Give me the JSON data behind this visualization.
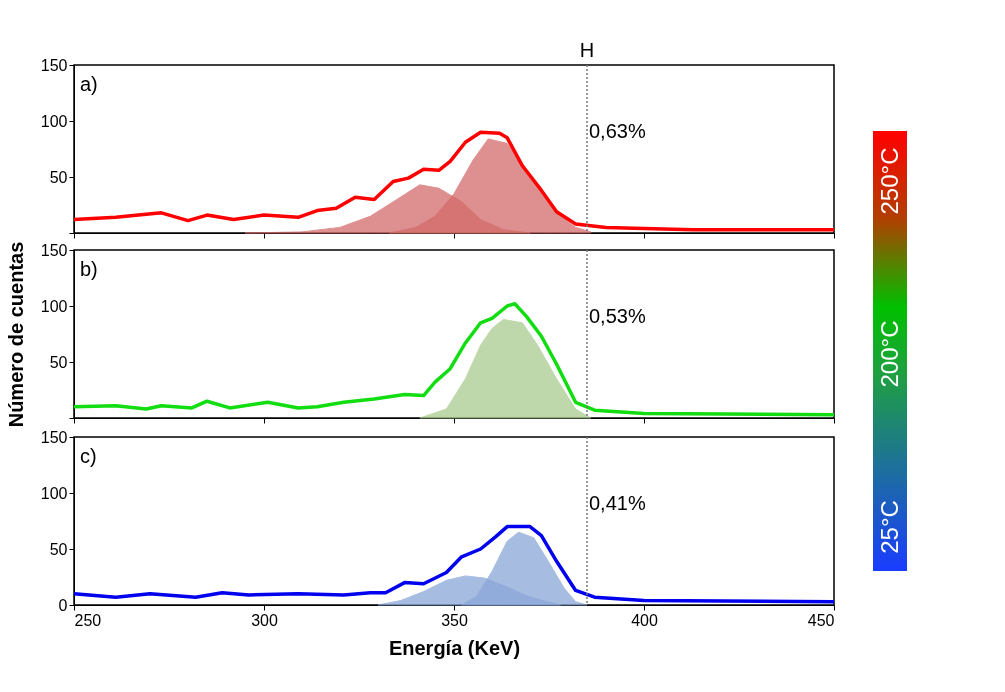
{
  "chart_data": [
    {
      "type": "line",
      "xlim": [
        250,
        450
      ],
      "xticks": [
        250,
        300,
        350,
        400,
        450
      ],
      "ylim": [
        0,
        150
      ],
      "yticks": [
        {
          "value": 0,
          "label": null
        },
        50,
        100,
        150
      ],
      "tick_labels": "y",
      "grid": false,
      "line_style": "solid",
      "annotations": [
        "a)",
        "0,63%"
      ],
      "ref_lines": [
        {
          "axis": "x",
          "value": 385,
          "label": "H",
          "line_style": "dotted",
          "color": "#777777"
        }
      ],
      "series": [
        {
          "type": "area",
          "color": "#d46a6a",
          "x": [
            295,
            310,
            320,
            328,
            335,
            341,
            346,
            352,
            357,
            363,
            370
          ],
          "values": [
            0,
            1,
            5,
            15,
            30,
            43,
            40,
            28,
            12,
            3,
            0
          ]
        },
        {
          "type": "area",
          "color": "#d46a6a",
          "x": [
            333,
            340,
            345,
            350,
            355,
            359,
            364,
            368,
            372,
            377,
            382,
            386
          ],
          "values": [
            0,
            5,
            15,
            35,
            65,
            84,
            80,
            62,
            40,
            18,
            5,
            1
          ]
        },
        {
          "type": "line",
          "color": "#ff0000",
          "x": [
            250,
            261,
            273,
            280,
            285,
            292,
            300,
            309,
            314,
            319,
            324,
            329,
            334,
            338,
            342,
            346,
            349,
            353,
            357,
            362,
            364,
            368,
            373,
            377,
            382,
            390,
            400,
            413,
            450
          ],
          "values": [
            12,
            14,
            18,
            11,
            16,
            12,
            16,
            14,
            20,
            22,
            32,
            30,
            46,
            49,
            57,
            56,
            64,
            81,
            90,
            89,
            85,
            60,
            38,
            19,
            8,
            5,
            4,
            3,
            3
          ]
        }
      ]
    },
    {
      "type": "line",
      "xlim": [
        250,
        450
      ],
      "xticks": [
        250,
        300,
        350,
        400,
        450
      ],
      "ylim": [
        0,
        150
      ],
      "yticks": [
        {
          "value": 0,
          "label": null
        },
        50,
        100,
        150
      ],
      "tick_labels": "y",
      "grid": false,
      "line_style": "solid",
      "ylabel": "Número de cuentas",
      "annotations": [
        "b)",
        "0,53%"
      ],
      "ref_lines": [
        {
          "axis": "x",
          "value": 385,
          "line_style": "dotted",
          "color": "#777777"
        }
      ],
      "series": [
        {
          "type": "area",
          "color": "#a9cc8f",
          "x": [
            341,
            348,
            353,
            357,
            360,
            363,
            368,
            372,
            377,
            382,
            386
          ],
          "values": [
            0,
            8,
            35,
            65,
            80,
            88,
            85,
            65,
            35,
            8,
            0
          ]
        },
        {
          "type": "line",
          "color": "#11dd11",
          "x": [
            250,
            261,
            269,
            273,
            281,
            285,
            291,
            301,
            309,
            314,
            321,
            329,
            337,
            342,
            345,
            349,
            353,
            357,
            360,
            364,
            366,
            369,
            373,
            377,
            382,
            387,
            400,
            450
          ],
          "values": [
            10,
            11,
            8,
            11,
            9,
            15,
            9,
            14,
            9,
            10,
            14,
            17,
            21,
            20,
            32,
            44,
            67,
            85,
            89,
            100,
            102,
            91,
            73,
            48,
            14,
            7,
            4,
            3
          ]
        }
      ]
    },
    {
      "type": "line",
      "xlim": [
        250,
        450
      ],
      "xticks": [
        250,
        300,
        350,
        400,
        450
      ],
      "ylim": [
        0,
        150
      ],
      "yticks": [
        0,
        50,
        100,
        150
      ],
      "grid": false,
      "line_style": "solid",
      "xlabel": "Energía (KeV)",
      "annotations": [
        "c)",
        "0,41%"
      ],
      "ref_lines": [
        {
          "axis": "x",
          "value": 385,
          "line_style": "dotted",
          "color": "#777777"
        }
      ],
      "series": [
        {
          "type": "area",
          "color": "#8aa6d8",
          "x": [
            330,
            336,
            342,
            348,
            353,
            358,
            364,
            370,
            378
          ],
          "values": [
            0,
            4,
            12,
            22,
            26,
            24,
            16,
            7,
            0
          ]
        },
        {
          "type": "area",
          "color": "#8aa6d8",
          "x": [
            352,
            356,
            360,
            364,
            367,
            371,
            375,
            379,
            382,
            385
          ],
          "values": [
            0,
            8,
            30,
            57,
            65,
            60,
            38,
            15,
            3,
            0
          ]
        },
        {
          "type": "line",
          "color": "#0000ee",
          "x": [
            250,
            261,
            270,
            282,
            289,
            296,
            309,
            321,
            328,
            332,
            337,
            342,
            348,
            352,
            357,
            361,
            364,
            370,
            373,
            377,
            382,
            387,
            400,
            450
          ],
          "values": [
            10,
            7,
            10,
            7,
            11,
            9,
            10,
            9,
            11,
            11,
            20,
            19,
            29,
            43,
            50,
            61,
            70,
            70,
            62,
            39,
            13,
            7,
            4,
            3
          ]
        }
      ]
    },
    {
      "type": "other",
      "annotations": [
        "250°C",
        "200°C",
        "25°C"
      ]
    }
  ]
}
